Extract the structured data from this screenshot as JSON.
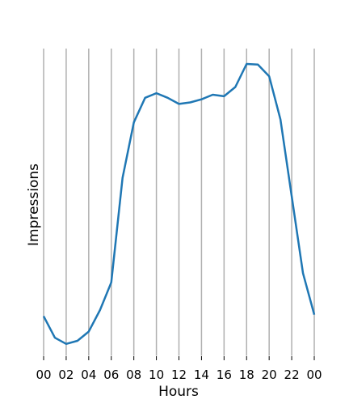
{
  "chart_data": {
    "type": "line",
    "title": "",
    "xlabel": "Hours",
    "ylabel": "Impressions",
    "x_tick_labels": [
      "00",
      "02",
      "04",
      "06",
      "08",
      "10",
      "12",
      "14",
      "16",
      "18",
      "20",
      "22",
      "00"
    ],
    "x": [
      0,
      1,
      2,
      3,
      4,
      5,
      6,
      7,
      8,
      9,
      10,
      11,
      12,
      13,
      14,
      15,
      16,
      17,
      18,
      19,
      20,
      21,
      22,
      23,
      24
    ],
    "y_tick_labels_shown": false,
    "grid": "vertical",
    "legend": "none",
    "ylim": [
      0,
      100
    ],
    "series": [
      {
        "color": "#1f77b4",
        "values": [
          13,
          6,
          4,
          5,
          8,
          15,
          24,
          58,
          76,
          84,
          85.5,
          84,
          82,
          82.5,
          83.5,
          85,
          84.5,
          87.5,
          95,
          94.8,
          91,
          77,
          52,
          27,
          13.5
        ]
      }
    ],
    "colors": {
      "grid": "#b0b0b0",
      "line": "#1f77b4",
      "axis": "#000000"
    }
  }
}
